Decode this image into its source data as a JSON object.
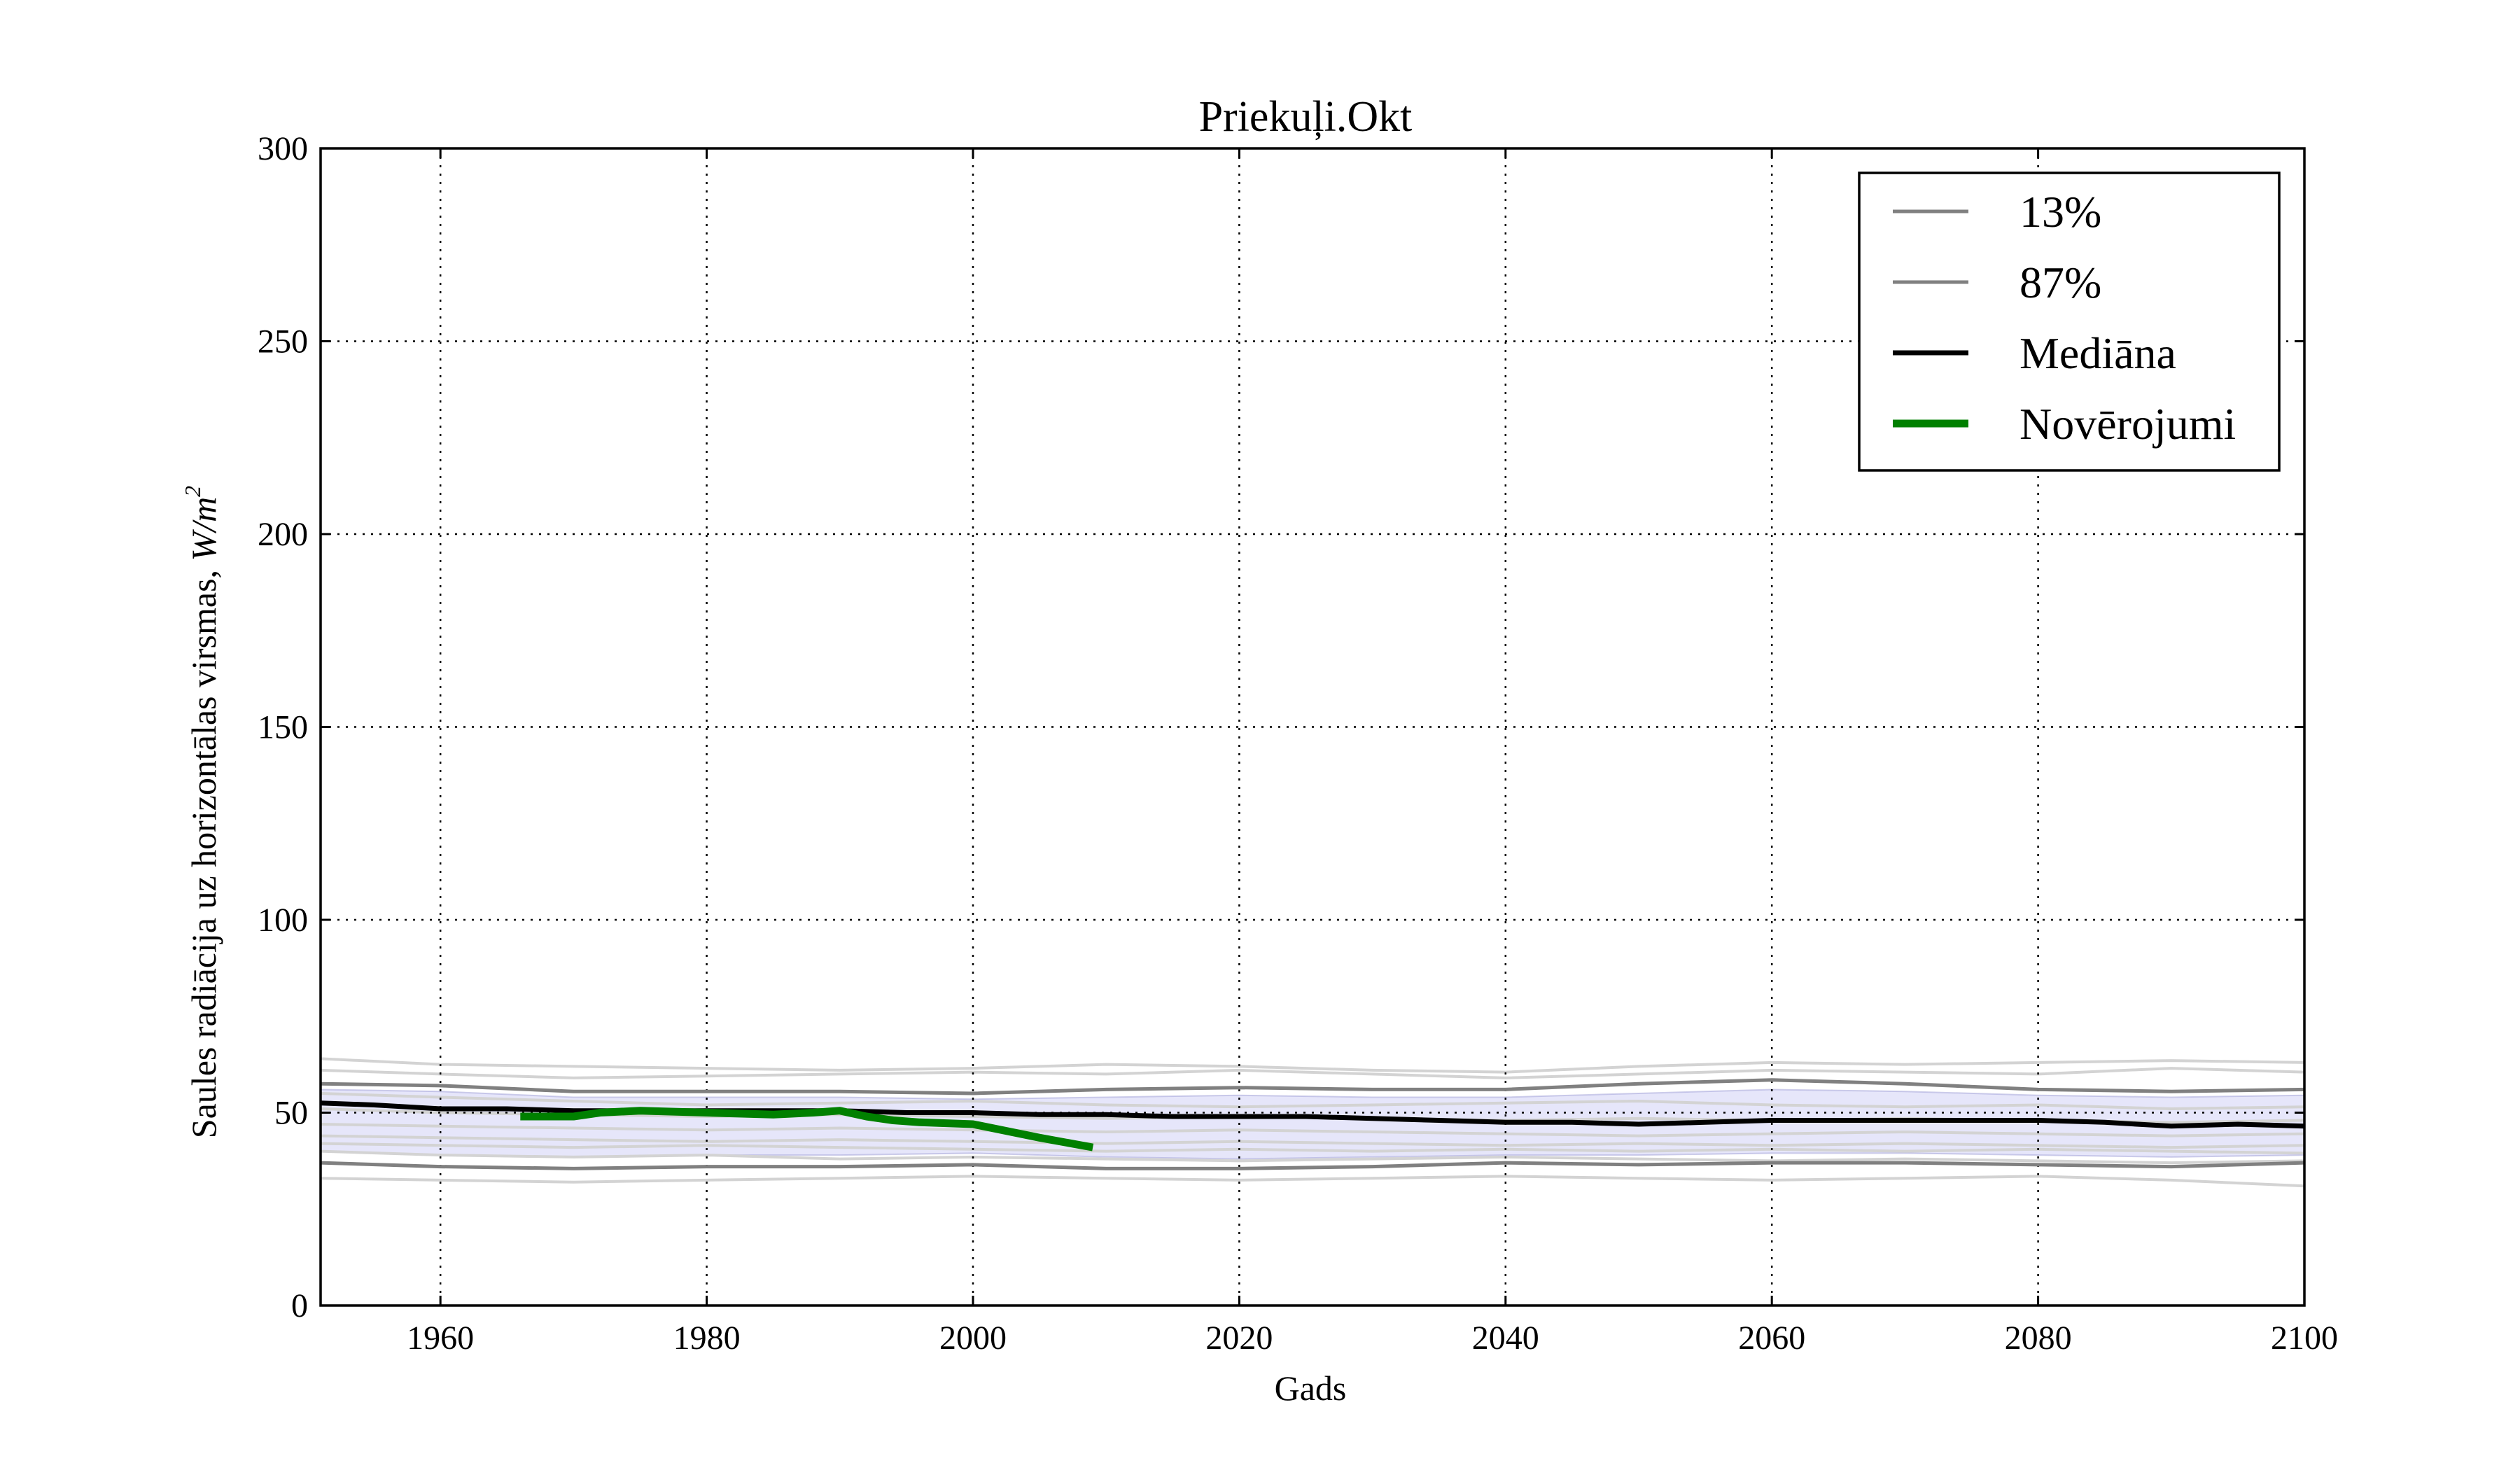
{
  "chart_data": {
    "type": "line",
    "title": "Priekuļi.Okt",
    "xlabel": "Gads",
    "ylabel_prefix": "Saules radiācija uz horizontālas virsmas, ",
    "ylabel_unit_italic": "W/m",
    "ylabel_unit_sup": "2",
    "xlim": [
      1951,
      2100
    ],
    "ylim": [
      0,
      300
    ],
    "xticks": [
      1960,
      1980,
      2000,
      2020,
      2040,
      2060,
      2080,
      2100
    ],
    "yticks": [
      0,
      50,
      100,
      150,
      200,
      250,
      300
    ],
    "grid": true,
    "legend_position": "top-right",
    "colors": {
      "ensemble": "#d3d3d3",
      "percentile": "#808080",
      "median": "#000000",
      "observations": "#008000",
      "band": "#e6e6fa",
      "band_edge": "#9d9dd6"
    },
    "legend": [
      {
        "label": "13%",
        "style": "percentile"
      },
      {
        "label": "87%",
        "style": "percentile"
      },
      {
        "label": "Mediāna",
        "style": "median"
      },
      {
        "label": "Novērojumi",
        "style": "observations"
      }
    ],
    "series": [
      {
        "name": "13%",
        "style": "percentile",
        "x": [
          1951,
          1960,
          1970,
          1980,
          1990,
          2000,
          2010,
          2020,
          2030,
          2040,
          2050,
          2060,
          2070,
          2080,
          2090,
          2100
        ],
        "y": [
          37,
          36,
          35.5,
          36,
          36,
          36.5,
          35.5,
          35.5,
          36,
          37,
          36.5,
          37,
          37,
          36.5,
          36,
          37
        ]
      },
      {
        "name": "87%",
        "style": "percentile",
        "x": [
          1951,
          1960,
          1970,
          1980,
          1990,
          2000,
          2010,
          2020,
          2030,
          2040,
          2050,
          2060,
          2070,
          2080,
          2090,
          2100
        ],
        "y": [
          57.5,
          57,
          55.5,
          55.5,
          55.5,
          55,
          56,
          56.5,
          56,
          56,
          57.5,
          58.5,
          57.5,
          56,
          55.5,
          56
        ]
      },
      {
        "name": "Mediāna",
        "style": "median",
        "x": [
          1951,
          1955,
          1960,
          1965,
          1970,
          1975,
          1980,
          1985,
          1990,
          1995,
          2000,
          2005,
          2010,
          2015,
          2020,
          2025,
          2030,
          2035,
          2040,
          2045,
          2050,
          2055,
          2060,
          2065,
          2070,
          2075,
          2080,
          2085,
          2090,
          2095,
          2100
        ],
        "y": [
          52.5,
          52,
          51,
          51,
          50.5,
          50.5,
          50.5,
          50.5,
          50.5,
          50,
          50,
          49.5,
          49.5,
          49,
          49,
          49,
          48.5,
          48,
          47.5,
          47.5,
          47,
          47.5,
          48,
          48,
          48,
          48,
          48,
          47.5,
          46.5,
          47,
          46.5
        ]
      },
      {
        "name": "Novērojumi",
        "style": "observations",
        "x": [
          1966,
          1970,
          1972,
          1975,
          1980,
          1985,
          1988,
          1990,
          1992,
          1994,
          1996,
          2000,
          2005,
          2009
        ],
        "y": [
          49,
          49,
          50,
          50.5,
          50,
          49.5,
          50,
          50.5,
          49,
          48,
          47.5,
          47,
          43.5,
          41
        ]
      }
    ],
    "band": {
      "x": [
        1951,
        1960,
        1970,
        1980,
        1990,
        2000,
        2010,
        2020,
        2030,
        2040,
        2050,
        2060,
        2070,
        2080,
        2090,
        2100
      ],
      "lower": [
        40,
        39,
        38.5,
        39,
        39,
        39.5,
        38.5,
        38,
        38.5,
        39,
        39,
        39.5,
        39.5,
        39,
        38.5,
        39
      ],
      "upper": [
        56,
        55.5,
        54,
        54,
        54,
        53.5,
        54,
        54.5,
        54,
        54,
        55,
        56,
        55.5,
        54.5,
        54,
        54.5
      ]
    },
    "ensemble_runs": [
      {
        "x": [
          1951,
          1960,
          1970,
          1980,
          1990,
          2000,
          2010,
          2020,
          2030,
          2040,
          2050,
          2060,
          2070,
          2080,
          2090,
          2100
        ],
        "y": [
          64,
          62.5,
          62,
          61.5,
          61,
          61.5,
          62.5,
          62,
          61,
          60.5,
          62,
          63,
          62.5,
          63,
          63.5,
          63
        ]
      },
      {
        "x": [
          1951,
          1960,
          1970,
          1980,
          1990,
          2000,
          2010,
          2020,
          2030,
          2040,
          2050,
          2060,
          2070,
          2080,
          2090,
          2100
        ],
        "y": [
          61,
          60,
          59,
          59.5,
          60,
          60.5,
          60,
          61,
          60,
          59,
          60,
          61,
          60.5,
          60,
          61.5,
          60.5
        ]
      },
      {
        "x": [
          1951,
          1960,
          1970,
          1980,
          1990,
          2000,
          2010,
          2020,
          2030,
          2040,
          2050,
          2060,
          2070,
          2080,
          2090,
          2100
        ],
        "y": [
          55,
          54,
          53,
          52,
          52.5,
          53,
          52,
          51.5,
          52,
          52.5,
          53,
          52,
          51.5,
          52,
          51,
          51.5
        ]
      },
      {
        "x": [
          1951,
          1960,
          1970,
          1980,
          1990,
          2000,
          2010,
          2020,
          2030,
          2040,
          2050,
          2060,
          2070,
          2080,
          2090,
          2100
        ],
        "y": [
          47,
          46.5,
          46,
          45.5,
          46,
          45.5,
          45,
          45.5,
          45,
          44.5,
          44,
          44.5,
          45,
          44.5,
          44,
          44.5
        ]
      },
      {
        "x": [
          1951,
          1960,
          1970,
          1980,
          1990,
          2000,
          2010,
          2020,
          2030,
          2040,
          2050,
          2060,
          2070,
          2080,
          2090,
          2100
        ],
        "y": [
          44,
          43.5,
          43,
          42.5,
          43,
          42.5,
          42,
          42.5,
          42,
          41.5,
          42,
          41.5,
          42,
          41.5,
          41,
          41.5
        ]
      },
      {
        "x": [
          1951,
          1960,
          1970,
          1980,
          1990,
          2000,
          2010,
          2020,
          2030,
          2040,
          2050,
          2060,
          2070,
          2080,
          2090,
          2100
        ],
        "y": [
          42,
          41.5,
          41,
          41.5,
          41,
          40.5,
          40,
          40.5,
          40,
          40.5,
          40,
          40.5,
          40,
          40.5,
          40,
          39.5
        ]
      },
      {
        "x": [
          1951,
          1960,
          1970,
          1980,
          1990,
          2000,
          2010,
          2020,
          2030,
          2040,
          2050,
          2060,
          2070,
          2080,
          2090,
          2100
        ],
        "y": [
          40,
          39,
          38.5,
          39,
          38,
          38.5,
          38,
          37.5,
          38,
          38.5,
          38,
          37.5,
          38,
          37.5,
          37,
          37.5
        ]
      },
      {
        "x": [
          1951,
          1960,
          1970,
          1980,
          1990,
          2000,
          2010,
          2020,
          2030,
          2040,
          2050,
          2060,
          2070,
          2080,
          2090,
          2100
        ],
        "y": [
          33,
          32.5,
          32,
          32.5,
          33,
          33.5,
          33,
          32.5,
          33,
          33.5,
          33,
          32.5,
          33,
          33.5,
          32.5,
          31
        ]
      },
      {
        "x": [
          1951,
          1960,
          1970,
          1980,
          1990,
          2000,
          2010,
          2020,
          2030,
          2040,
          2050,
          2060,
          2070,
          2080,
          2090,
          2100
        ],
        "y": [
          51,
          50,
          49.5,
          49,
          49.5,
          49,
          48.5,
          49,
          48.5,
          48,
          48.5,
          48,
          48.5,
          48,
          47.5,
          48
        ]
      }
    ]
  }
}
